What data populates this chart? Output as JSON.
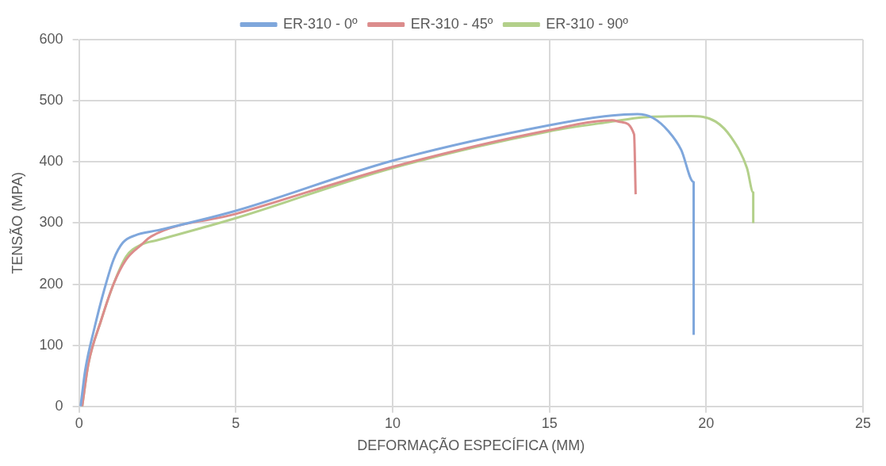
{
  "chart_data": {
    "type": "line",
    "xlabel": "DEFORMAÇÃO ESPECÍFICA (MM)",
    "ylabel": "TENSÃO (MPA)",
    "xlim": [
      0,
      25
    ],
    "xticks": [
      0,
      5,
      10,
      15,
      20,
      25
    ],
    "ylim": [
      0,
      600
    ],
    "yticks": [
      0,
      100,
      200,
      300,
      400,
      500,
      600
    ],
    "grid": true,
    "legend": "top",
    "marker": "none",
    "line_style": "solid",
    "series": [
      {
        "name": "ER-310 - 0º",
        "color": "#7fa7dc",
        "x": [
          0.05,
          0.2,
          0.5,
          0.8,
          1.1,
          1.4,
          1.8,
          2.5,
          5,
          10,
          15,
          17,
          17.8,
          18.3,
          18.8,
          19.2,
          19.6,
          19.6
        ],
        "values": [
          0,
          60,
          130,
          190,
          240,
          268,
          280,
          288,
          320,
          402,
          460,
          476,
          478,
          472,
          450,
          420,
          367,
          117
        ]
      },
      {
        "name": "ER-310 - 45º",
        "color": "#dc8c8c",
        "x": [
          0.1,
          0.3,
          0.7,
          1.1,
          1.5,
          2,
          2.3,
          5,
          10,
          15,
          17,
          17.3,
          17.7,
          17.75
        ],
        "values": [
          0,
          70,
          140,
          200,
          240,
          265,
          278,
          315,
          392,
          452,
          468,
          465,
          445,
          347
        ]
      },
      {
        "name": "ER-310 - 90º",
        "color": "#b3d08a",
        "x": [
          0.1,
          0.3,
          0.7,
          1.1,
          1.5,
          2,
          2.5,
          5,
          10,
          15,
          17,
          18,
          19.5,
          20.3,
          20.8,
          21.3,
          21.5,
          21.5
        ],
        "values": [
          0,
          70,
          140,
          200,
          245,
          265,
          272,
          308,
          390,
          450,
          466,
          473,
          475,
          466,
          440,
          390,
          350,
          300
        ]
      }
    ]
  }
}
